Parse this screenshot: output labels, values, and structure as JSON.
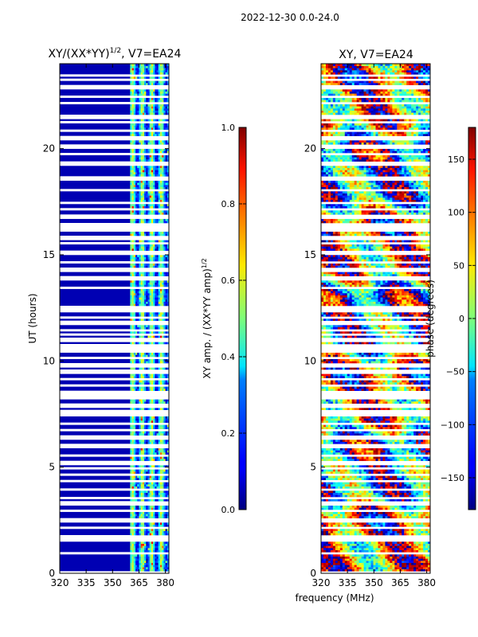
{
  "suptitle": "2022-12-30 0.0-24.0",
  "chart_data": [
    {
      "type": "heatmap",
      "title": "XY/(XX*YY)",
      "title_exponent": "1/2",
      "title_suffix": ", V7=EA24",
      "xlabel": "",
      "ylabel": "UT (hours)",
      "xlim": [
        320,
        382
      ],
      "ylim": [
        0,
        24
      ],
      "x_ticks": [
        "320",
        "335",
        "350",
        "365",
        "380"
      ],
      "x_tick_values": [
        320,
        335,
        350,
        365,
        380
      ],
      "y_ticks": [
        "0",
        "5",
        "10",
        "15",
        "20"
      ],
      "y_tick_values": [
        0,
        5,
        10,
        15,
        20
      ],
      "colorbar": {
        "label": "XY amp. / (XX*YY amp)",
        "label_exponent": "1/2",
        "min": 0.0,
        "max": 1.0,
        "ticks": [
          "0.0",
          "0.2",
          "0.4",
          "0.6",
          "0.8",
          "1.0"
        ],
        "tick_values": [
          0.0,
          0.2,
          0.4,
          0.6,
          0.8,
          1.0
        ]
      },
      "description_values": {
        "low_freq_band_MHz": [
          320,
          360
        ],
        "low_freq_band_typical_value": 0.05,
        "high_freq_band_MHz": [
          360,
          382
        ],
        "high_freq_band_value_range": [
          0.2,
          0.9
        ]
      }
    },
    {
      "type": "heatmap",
      "title": "XY, V7=EA24",
      "xlabel": "frequency (MHz)",
      "ylabel": "",
      "xlim": [
        320,
        382
      ],
      "ylim": [
        0,
        24
      ],
      "x_ticks": [
        "320",
        "335",
        "350",
        "365",
        "380"
      ],
      "x_tick_values": [
        320,
        335,
        350,
        365,
        380
      ],
      "y_ticks": [
        "0",
        "5",
        "10",
        "15",
        "20"
      ],
      "y_tick_values": [
        0,
        5,
        10,
        15,
        20
      ],
      "colorbar": {
        "label": "phase (degrees)",
        "min": -180,
        "max": 180,
        "ticks": [
          "−150",
          "−100",
          "−50",
          "0",
          "50",
          "100",
          "150"
        ],
        "tick_values": [
          -150,
          -100,
          -50,
          0,
          50,
          100,
          150
        ]
      }
    }
  ],
  "flagged_hours": [
    0.05,
    0.95,
    1.55,
    1.7,
    2.15,
    2.5,
    2.95,
    3.3,
    3.55,
    3.95,
    4.35,
    4.65,
    4.95,
    5.2,
    5.55,
    6.0,
    6.4,
    6.75,
    7.05,
    7.45,
    7.6,
    7.9,
    8.3,
    8.5,
    8.85,
    9.15,
    9.5,
    9.8,
    10.15,
    10.5,
    10.7,
    11.0,
    11.25,
    11.45,
    11.8,
    12.05,
    12.4,
    12.55,
    13.45,
    13.9,
    14.3,
    14.65,
    15.1,
    15.55,
    15.8,
    16.2,
    16.4,
    16.8,
    17.15,
    17.45,
    18.05,
    18.6,
    19.3,
    19.75,
    20.1,
    20.5,
    20.85,
    21.25,
    21.5,
    22.15,
    22.45,
    22.9,
    23.25,
    23.45
  ]
}
